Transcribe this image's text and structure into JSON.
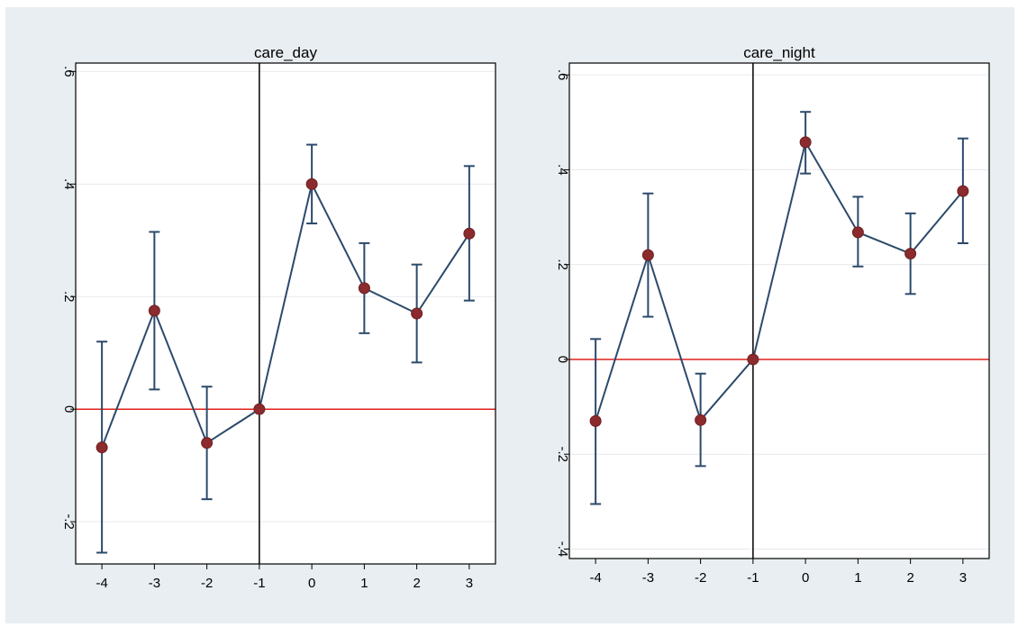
{
  "chart_data": [
    {
      "type": "scatter",
      "title": "care_day",
      "x": [
        -4,
        -3,
        -2,
        -1,
        0,
        1,
        2,
        3
      ],
      "xticks": [
        "-4",
        "-3",
        "-2",
        "-1",
        "0",
        "1",
        "2",
        "3"
      ],
      "xlim": [
        -4.5,
        3.5
      ],
      "ylim": [
        -0.275,
        0.615
      ],
      "yticks": [
        "-.2",
        "0",
        ".2",
        ".4",
        ".6"
      ],
      "ytick_values": [
        -0.2,
        0,
        0.2,
        0.4,
        0.6
      ],
      "grid": true,
      "series": [
        {
          "values": [
            -0.068,
            0.175,
            -0.06,
            0.0,
            0.4,
            0.215,
            0.17,
            0.312
          ],
          "ci_low": [
            -0.255,
            0.035,
            -0.16,
            0.0,
            0.33,
            0.135,
            0.083,
            0.193
          ],
          "ci_high": [
            0.12,
            0.315,
            0.04,
            0.0,
            0.47,
            0.295,
            0.257,
            0.432
          ]
        }
      ],
      "reference_lines": {
        "hline_y": 0,
        "vline_x": -1
      },
      "colors": {
        "marker": "#8b2b2e",
        "line": "#2c4a6b",
        "hline": "#e0201b",
        "vline": "#000000",
        "plot_bg": "#ffffff",
        "grid": "#e6eaee"
      }
    },
    {
      "type": "scatter",
      "title": "care_night",
      "x": [
        -4,
        -3,
        -2,
        -1,
        0,
        1,
        2,
        3
      ],
      "xticks": [
        "-4",
        "-3",
        "-2",
        "-1",
        "0",
        "1",
        "2",
        "3"
      ],
      "xlim": [
        -4.5,
        3.5
      ],
      "ylim": [
        -0.42,
        0.625
      ],
      "yticks": [
        "-.4",
        "-.2",
        "0",
        ".2",
        ".4",
        ".6"
      ],
      "ytick_values": [
        -0.4,
        -0.2,
        0,
        0.2,
        0.4,
        0.6
      ],
      "grid": true,
      "series": [
        {
          "values": [
            -0.13,
            0.22,
            -0.128,
            0.0,
            0.458,
            0.268,
            0.223,
            0.355
          ],
          "ci_low": [
            -0.305,
            0.09,
            -0.225,
            0.0,
            0.392,
            0.196,
            0.138,
            0.245
          ],
          "ci_high": [
            0.043,
            0.35,
            -0.03,
            0.0,
            0.522,
            0.343,
            0.308,
            0.466
          ]
        }
      ],
      "reference_lines": {
        "hline_y": 0,
        "vline_x": -1
      },
      "colors": {
        "marker": "#8b2b2e",
        "line": "#2c4a6b",
        "hline": "#e0201b",
        "vline": "#000000",
        "plot_bg": "#ffffff",
        "grid": "#e6eaee"
      }
    }
  ]
}
